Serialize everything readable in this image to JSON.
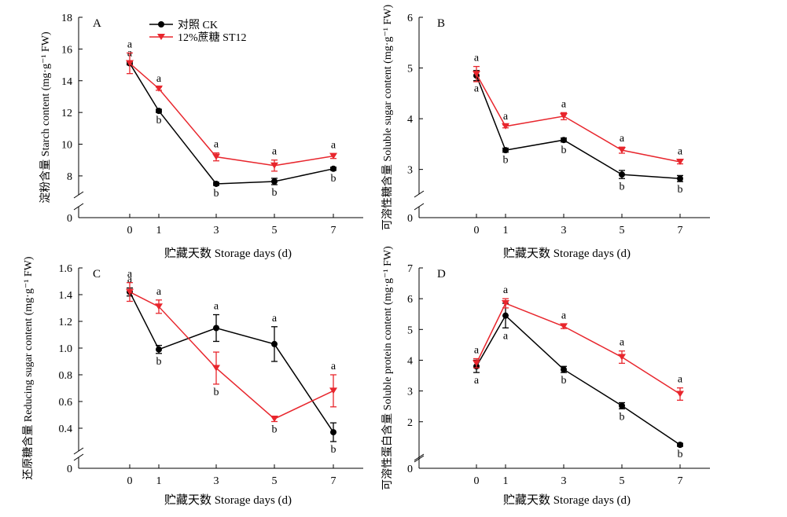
{
  "colors": {
    "ck": "#000000",
    "st12": "#e8262d",
    "axis": "#000000"
  },
  "legend": {
    "ck_label": "对照 CK",
    "st12_label": "12%蔗糖 ST12"
  },
  "x_label": "贮藏天数 Storage days (d)",
  "chart_data": [
    {
      "panel_letter": "A",
      "type": "line",
      "y_label": "淀粉含量 Starch content (mg·g⁻¹ FW)",
      "x": [
        0,
        1,
        3,
        5,
        7
      ],
      "x_ticks": [
        "0",
        "1",
        "3",
        "5",
        "7"
      ],
      "y_ticks": [
        "8",
        "10",
        "12",
        "14",
        "16",
        "18"
      ],
      "y_zero": "0",
      "ylim": [
        7.4,
        18
      ],
      "series": [
        {
          "name": "对照 CK",
          "values": [
            15.1,
            12.1,
            7.5,
            7.65,
            8.45
          ],
          "err": [
            0.1,
            0.1,
            0.1,
            0.2,
            0.1
          ],
          "letters": [
            "a",
            "b",
            "b",
            "b",
            "b"
          ]
        },
        {
          "name": "12%蔗糖 ST12",
          "values": [
            15.1,
            13.5,
            9.2,
            8.65,
            9.25
          ],
          "err": [
            0.65,
            0.1,
            0.25,
            0.35,
            0.15
          ],
          "letters": [
            "a",
            "a",
            "a",
            "a",
            "a"
          ]
        }
      ]
    },
    {
      "panel_letter": "B",
      "type": "line",
      "y_label": "可溶性糖含量 Soluble sugar content (mg·g⁻¹ FW)",
      "x": [
        0,
        1,
        3,
        5,
        7
      ],
      "x_ticks": [
        "0",
        "1",
        "3",
        "5",
        "7"
      ],
      "y_ticks": [
        "3",
        "4",
        "5",
        "6"
      ],
      "y_zero": "0",
      "ylim": [
        2.7,
        6
      ],
      "series": [
        {
          "name": "对照 CK",
          "values": [
            4.85,
            3.38,
            3.58,
            2.9,
            2.82
          ],
          "err": [
            0.1,
            0.04,
            0.04,
            0.08,
            0.06
          ],
          "letters": [
            "a",
            "b",
            "b",
            "b",
            "b"
          ]
        },
        {
          "name": "12%蔗糖 ST12",
          "values": [
            4.88,
            3.85,
            4.05,
            3.38,
            3.15
          ],
          "err": [
            0.15,
            0.03,
            0.07,
            0.06,
            0.04
          ],
          "letters": [
            "a",
            "a",
            "a",
            "a",
            "a"
          ]
        }
      ]
    },
    {
      "panel_letter": "C",
      "type": "line",
      "y_label": "还原糖含量 Reducing sugar content (mg·g⁻¹ FW)",
      "x": [
        0,
        1,
        3,
        5,
        7
      ],
      "x_ticks": [
        "0",
        "1",
        "3",
        "5",
        "7"
      ],
      "y_ticks": [
        "0.4",
        "0.6",
        "0.8",
        "1.0",
        "1.2",
        "1.4",
        "1.6"
      ],
      "y_zero": "0",
      "ylim": [
        0.3,
        1.6
      ],
      "series": [
        {
          "name": "对照 CK",
          "values": [
            1.42,
            0.99,
            1.15,
            1.03,
            0.37
          ],
          "err": [
            0.03,
            0.03,
            0.1,
            0.13,
            0.07
          ],
          "letters": [
            "a",
            "b",
            "a",
            "a",
            "b"
          ]
        },
        {
          "name": "12%蔗糖 ST12",
          "values": [
            1.42,
            1.31,
            0.85,
            0.47,
            0.68
          ],
          "err": [
            0.07,
            0.05,
            0.12,
            0.02,
            0.12
          ],
          "letters": [
            "a",
            "a",
            "b",
            "b",
            "a"
          ]
        }
      ]
    },
    {
      "panel_letter": "D",
      "type": "line",
      "y_label": "可溶性蛋白含量 Soluble protein content (mg·g⁻¹ FW)",
      "x": [
        0,
        1,
        3,
        5,
        7
      ],
      "x_ticks": [
        "0",
        "1",
        "3",
        "5",
        "7"
      ],
      "y_ticks": [
        "2",
        "3",
        "4",
        "5",
        "6",
        "7"
      ],
      "y_zero": "0",
      "ylim": [
        1.1,
        7
      ],
      "series": [
        {
          "name": "对照 CK",
          "values": [
            3.8,
            5.45,
            3.7,
            2.52,
            1.25
          ],
          "err": [
            0.2,
            0.4,
            0.1,
            0.1,
            0.05
          ],
          "letters": [
            "a",
            "a",
            "b",
            "b",
            "b"
          ]
        },
        {
          "name": "12%蔗糖 ST12",
          "values": [
            3.9,
            5.85,
            5.1,
            4.1,
            2.9
          ],
          "err": [
            0.15,
            0.15,
            0.07,
            0.2,
            0.2
          ],
          "letters": [
            "a",
            "a",
            "a",
            "a",
            "a"
          ]
        }
      ]
    }
  ]
}
